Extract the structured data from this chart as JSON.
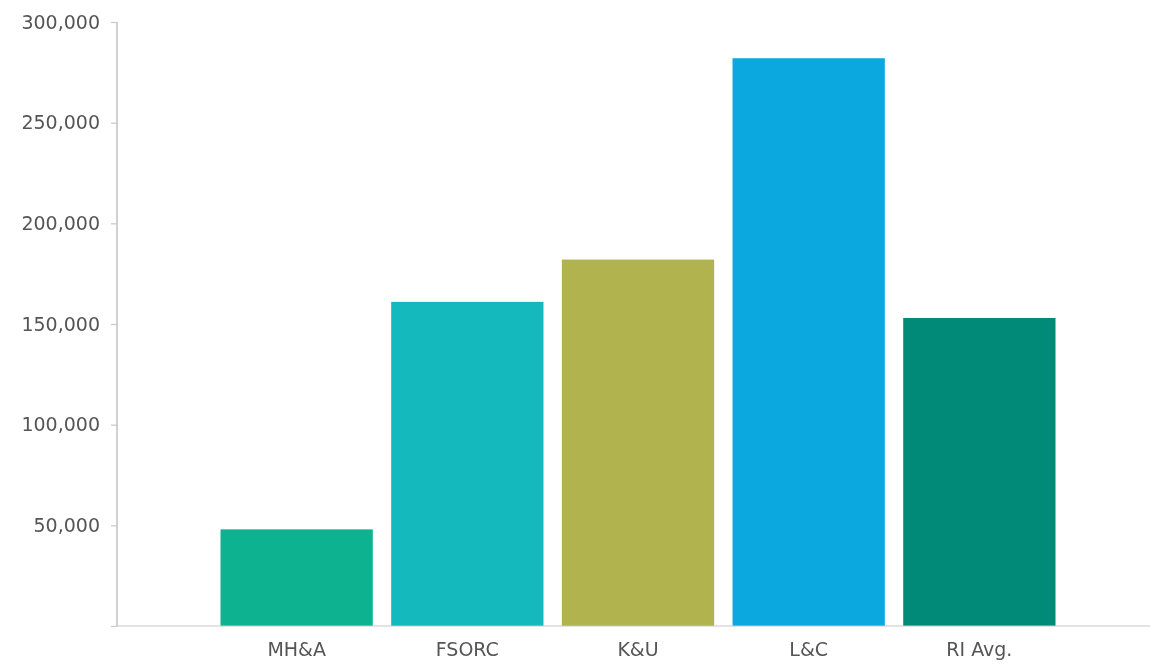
{
  "chart_data": {
    "type": "bar",
    "categories": [
      "MH&A",
      "FSORC",
      "K&U",
      "L&C",
      "RI Avg."
    ],
    "values": [
      48000,
      161000,
      182000,
      282000,
      153000
    ],
    "colors": [
      "#0db390",
      "#13b9bd",
      "#b1b34f",
      "#0ba7df",
      "#008a77"
    ],
    "ylim": [
      0,
      300000
    ],
    "yticks": [
      {
        "value": 0,
        "label": null
      },
      {
        "value": 50000,
        "label": "50,000"
      },
      {
        "value": 100000,
        "label": "100,000"
      },
      {
        "value": 150000,
        "label": "150,000"
      },
      {
        "value": 200000,
        "label": "200,000"
      },
      {
        "value": 250000,
        "label": "250,000"
      },
      {
        "value": 300000,
        "label": "300,000"
      }
    ],
    "grid": false
  }
}
